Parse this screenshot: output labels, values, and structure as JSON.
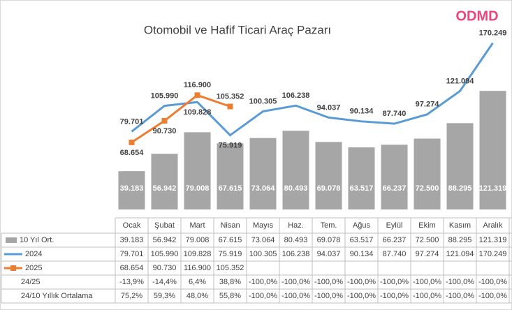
{
  "logo": "ODMD",
  "chart_data": {
    "type": "bar-line",
    "title": "Otomobil ve Hafif Ticari Araç Pazarı",
    "categories": [
      "Ocak",
      "Şubat",
      "Mart",
      "Nisan",
      "Mayıs",
      "Haz.",
      "Tem.",
      "Ağus",
      "Eylül",
      "Ekim",
      "Kasım",
      "Aralık"
    ],
    "series": [
      {
        "name": "10 Yıl Ort.",
        "type": "bar",
        "color": "#a6a6a6",
        "values": [
          39.183,
          56.942,
          79.008,
          67.615,
          73.064,
          80.493,
          69.078,
          63.517,
          66.237,
          72.5,
          88.295,
          121.319
        ],
        "value_labels": [
          "39.183",
          "56.942",
          "79.008",
          "67.615",
          "73.064",
          "80.493",
          "69.078",
          "63.517",
          "66.237",
          "72.500",
          "88.295",
          "121.319"
        ]
      },
      {
        "name": "2024",
        "type": "line",
        "color": "#5b9bd5",
        "values": [
          79.701,
          105.99,
          109.828,
          75.919,
          100.305,
          106.238,
          94.037,
          90.134,
          87.74,
          97.274,
          121.094,
          170.249
        ],
        "value_labels": [
          "79.701",
          "105.990",
          "109.828",
          "75.919",
          "100.305",
          "106.238",
          "94.037",
          "90.134",
          "87.740",
          "97.274",
          "121.094",
          "170.249"
        ]
      },
      {
        "name": "2025",
        "type": "line",
        "color": "#ed7d31",
        "values": [
          68.654,
          90.73,
          116.9,
          105.352,
          null,
          null,
          null,
          null,
          null,
          null,
          null,
          null
        ],
        "value_labels": [
          "68.654",
          "90.730",
          "116.900",
          "105.352",
          null,
          null,
          null,
          null,
          null,
          null,
          null,
          null
        ]
      }
    ],
    "table_rows": [
      {
        "name": "24/25",
        "cells": [
          "-13,9%",
          "-14,4%",
          "6,4%",
          "38,8%",
          "-100,0%",
          "-100,0%",
          "-100,0%",
          "-100,0%",
          "-100,0%",
          "-100,0%",
          "-100,0%",
          "-100,0%"
        ]
      },
      {
        "name": "24/10 Yıllık Ortalama",
        "cells": [
          "75,2%",
          "59,3%",
          "48,0%",
          "55,8%",
          "-100,0%",
          "-100,0%",
          "-100,0%",
          "-100,0%",
          "-100,0%",
          "-100,0%",
          "-100,0%",
          "-100,0%"
        ]
      }
    ]
  }
}
